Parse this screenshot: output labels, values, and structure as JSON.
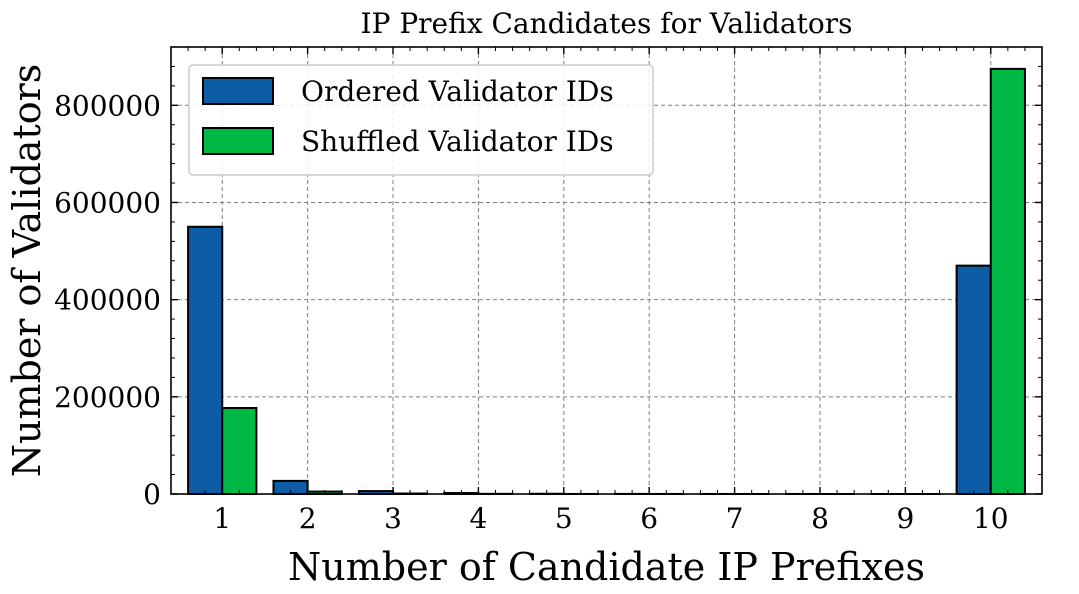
{
  "chart_data": {
    "type": "bar",
    "title": "IP Prefix Candidates for Validators",
    "xlabel": "Number of Candidate IP Prefixes",
    "ylabel": "Number of Validators",
    "categories": [
      "1",
      "2",
      "3",
      "4",
      "5",
      "6",
      "7",
      "8",
      "9",
      "10"
    ],
    "series": [
      {
        "name": "Ordered Validator IDs",
        "color": "#0c5da5",
        "values": [
          550000,
          27000,
          6000,
          2000,
          500,
          200,
          100,
          50,
          30,
          470000
        ]
      },
      {
        "name": "Shuffled Validator IDs",
        "color": "#00b945",
        "values": [
          177000,
          5000,
          1000,
          300,
          100,
          50,
          30,
          20,
          10,
          875000
        ]
      }
    ],
    "xlim": [
      0.4,
      10.6
    ],
    "ylim": [
      0,
      920000
    ],
    "yticks": [
      0,
      200000,
      400000,
      600000,
      800000
    ],
    "grid": true,
    "legend_position": "top-left"
  }
}
